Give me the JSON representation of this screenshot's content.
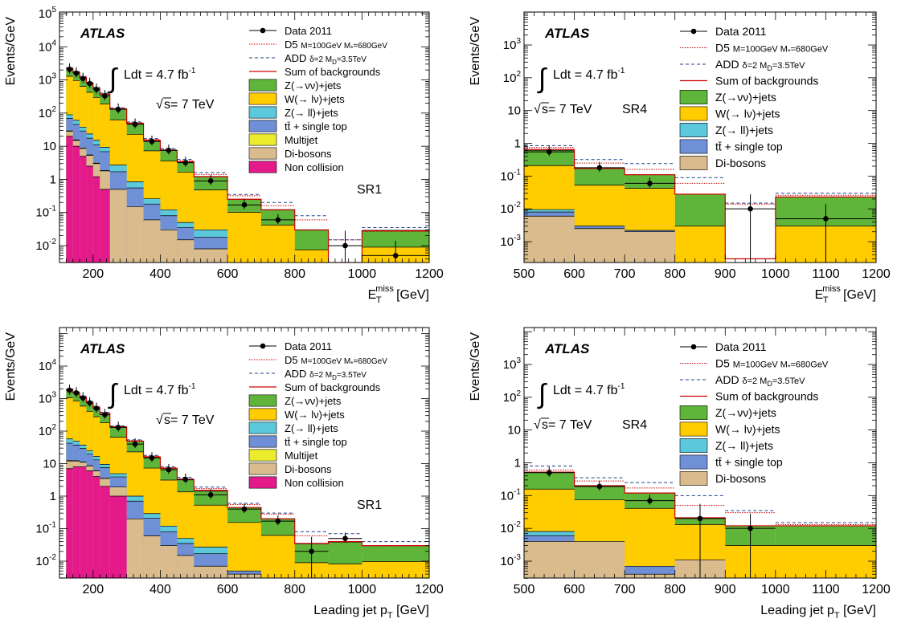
{
  "colors": {
    "znunu": "#5fb539",
    "wlnu": "#ffcc00",
    "zll": "#5bc8dc",
    "top": "#6f8fd6",
    "multijet": "#ecec2c",
    "diboson": "#d9bb8e",
    "noncoll": "#e41a8a",
    "sum": "#cc0000",
    "d5": "#cc0000",
    "add": "#1f3c88",
    "data": "#000000"
  },
  "common": {
    "experiment": "ATLAS",
    "y_label": "Events/GeV",
    "lumi_text": "Ldt = 4.7 fb",
    "lumi_sup": "-1",
    "energy_text": "s= 7 TeV",
    "legend": {
      "data": "Data 2011",
      "d5_a": "D5 ",
      "d5_b": "M=100GeV M",
      "d5_c": "*",
      "d5_d": "=680GeV",
      "add_a": "ADD ",
      "add_b": "δ=2 M",
      "add_c": "D",
      "add_d": "=3.5TeV",
      "sum": "Sum of backgrounds",
      "znunu": "Z(→νν)+jets",
      "wlnu": "W(→ lν)+jets",
      "zll": "Z(→ ll)+jets",
      "top": "tt̄ + single top",
      "multijet": "Multijet",
      "diboson": "Di-bosons",
      "noncoll": "Non collision"
    },
    "xlabel_met_main": "E",
    "xlabel_met_sup": "miss",
    "xlabel_met_sub": "T",
    "xlabel_met_unit": " [GeV]",
    "xlabel_pt_main": "Leading jet p",
    "xlabel_pt_sub": "T",
    "xlabel_pt_unit": " [GeV]"
  },
  "chart_data": [
    {
      "type": "area",
      "id": "a",
      "xaxis": "met",
      "region": "SR1",
      "xlim": [
        100,
        1200
      ],
      "ylim": [
        0.002,
        100000
      ],
      "log_y": true,
      "y_ticks": [
        "10-2",
        "10-1",
        "1",
        "10",
        "102",
        "103",
        "104",
        "105"
      ],
      "x_ticks": [
        "200",
        "400",
        "600",
        "800",
        "1000",
        "1200"
      ],
      "bin_edges": [
        120,
        140,
        160,
        180,
        200,
        220,
        250,
        300,
        350,
        400,
        450,
        500,
        600,
        700,
        800,
        900,
        1000,
        1200
      ],
      "stack": {
        "noncoll": [
          20,
          10,
          5,
          2.5,
          1.2,
          0.5,
          0,
          0,
          0,
          0,
          0,
          0,
          0,
          0,
          0,
          0,
          0
        ],
        "diboson": [
          8,
          5,
          3.5,
          2.8,
          1.8,
          1.3,
          0.5,
          0.15,
          0.06,
          0.03,
          0.015,
          0.008,
          0.002,
          0.002,
          0.0015,
          0,
          0.002
        ],
        "multijet": [
          1,
          0.6,
          0.3,
          0.15,
          0.08,
          0.04,
          0,
          0,
          0,
          0,
          0,
          0,
          0,
          0,
          0,
          0,
          0
        ],
        "top": [
          40,
          30,
          20,
          12,
          8,
          5,
          1.2,
          0.4,
          0.12,
          0.05,
          0.02,
          0.01,
          0,
          0,
          0,
          0,
          0
        ],
        "zll": [
          20,
          15,
          9,
          6,
          4,
          2.5,
          1,
          0.3,
          0.08,
          0.04,
          0.015,
          0.012,
          0,
          0,
          0,
          0,
          0
        ],
        "wlnu": [
          1200,
          900,
          600,
          400,
          280,
          180,
          60,
          22,
          7,
          3.5,
          1.6,
          0.45,
          0.1,
          0.04,
          0.006,
          0,
          0.007
        ],
        "znunu": [
          900,
          700,
          550,
          380,
          260,
          180,
          70,
          26,
          8,
          4,
          1.7,
          0.75,
          0.15,
          0.08,
          0.022,
          0,
          0.02
        ]
      },
      "sum": [
        2200,
        1700,
        1200,
        800,
        560,
        370,
        133,
        49,
        15,
        7.5,
        3.4,
        1.2,
        0.25,
        0.12,
        0.03,
        0.001,
        0.028
      ],
      "d5": [
        2300,
        1750,
        1250,
        830,
        580,
        390,
        140,
        52,
        16,
        8,
        3.7,
        1.4,
        0.32,
        0.16,
        0.06,
        0.015,
        0.027
      ],
      "add": [
        2350,
        1800,
        1280,
        850,
        600,
        400,
        145,
        54,
        17,
        8.5,
        4,
        1.6,
        0.35,
        0.2,
        0.08,
        0.015,
        0.035
      ],
      "data": {
        "x": [
          130,
          150,
          170,
          190,
          210,
          235,
          275,
          325,
          375,
          425,
          475,
          550,
          650,
          750,
          850,
          950,
          1100
        ],
        "y": [
          2100,
          1600,
          1100,
          780,
          520,
          330,
          130,
          46,
          14,
          7.5,
          3.2,
          0.9,
          0.17,
          0.06,
          null,
          0.01,
          0.005
        ]
      }
    },
    {
      "type": "area",
      "id": "b",
      "xaxis": "met",
      "region": "SR4",
      "xlim": [
        500,
        1200
      ],
      "ylim": [
        0.0003,
        10000
      ],
      "log_y": true,
      "y_ticks": [
        "10-3",
        "10-2",
        "10-1",
        "1",
        "10",
        "102",
        "103"
      ],
      "x_ticks": [
        "500",
        "600",
        "700",
        "800",
        "900",
        "1000",
        "1100",
        "1200"
      ],
      "bin_edges": [
        500,
        600,
        700,
        800,
        900,
        1000,
        1200
      ],
      "stack": {
        "noncoll": [
          0,
          0,
          0,
          0,
          0,
          0
        ],
        "diboson": [
          0.006,
          0.0025,
          0.002,
          0,
          0,
          0
        ],
        "multijet": [
          0,
          0,
          0,
          0,
          0,
          0
        ],
        "top": [
          0.002,
          0.0005,
          0.0002,
          0,
          0,
          0
        ],
        "zll": [
          0.0015,
          0,
          0,
          0,
          0,
          0
        ],
        "wlnu": [
          0.2,
          0.05,
          0.04,
          0.003,
          0,
          0.003
        ],
        "znunu": [
          0.4,
          0.12,
          0.07,
          0.025,
          0,
          0.02
        ]
      },
      "sum": [
        0.65,
        0.17,
        0.11,
        0.028,
        0.0003,
        0.023
      ],
      "d5": [
        0.75,
        0.25,
        0.16,
        0.06,
        0.014,
        0.026
      ],
      "add": [
        0.85,
        0.32,
        0.24,
        0.09,
        0.015,
        0.03
      ],
      "data": {
        "x": [
          550,
          650,
          750,
          850,
          950,
          1100
        ],
        "y": [
          0.55,
          0.18,
          0.06,
          null,
          0.01,
          0.005
        ]
      }
    },
    {
      "type": "area",
      "id": "c",
      "xaxis": "pt",
      "region": "SR1",
      "xlim": [
        100,
        1200
      ],
      "ylim": [
        0.002,
        100000
      ],
      "log_y": true,
      "y_ticks": [
        "10-2",
        "10-1",
        "1",
        "10",
        "102",
        "103",
        "104"
      ],
      "x_ticks": [
        "200",
        "400",
        "600",
        "800",
        "1000",
        "1200"
      ],
      "bin_edges": [
        120,
        140,
        160,
        180,
        200,
        220,
        250,
        300,
        350,
        400,
        450,
        500,
        600,
        700,
        800,
        900,
        1000,
        1200
      ],
      "stack": {
        "noncoll": [
          7,
          8,
          8,
          6,
          4,
          2,
          1,
          0,
          0,
          0,
          0,
          0,
          0,
          0,
          0,
          0,
          0
        ],
        "diboson": [
          5,
          4,
          3,
          2.5,
          2,
          1.5,
          0.9,
          0.2,
          0.06,
          0.03,
          0.015,
          0.007,
          0.004,
          0.002,
          0.002,
          0.0012,
          0.0018
        ],
        "multijet": [
          0.5,
          0.3,
          0.2,
          0.1,
          0.05,
          0.02,
          0,
          0,
          0,
          0,
          0,
          0,
          0,
          0,
          0,
          0,
          0
        ],
        "top": [
          30,
          25,
          18,
          11,
          7,
          4,
          2,
          0.5,
          0.15,
          0.05,
          0.02,
          0.01,
          0.001,
          0,
          0,
          0,
          0
        ],
        "zll": [
          15,
          12,
          8,
          5,
          3.5,
          2,
          1,
          0.3,
          0.08,
          0.04,
          0.015,
          0.01,
          0,
          0,
          0,
          0,
          0
        ],
        "wlnu": [
          1000,
          800,
          550,
          380,
          260,
          170,
          60,
          22,
          7,
          3,
          1.3,
          0.5,
          0.15,
          0.06,
          0.007,
          0.007,
          0.008
        ],
        "znunu": [
          800,
          650,
          500,
          350,
          250,
          170,
          70,
          26,
          9,
          4,
          1.8,
          0.9,
          0.3,
          0.14,
          0.025,
          0.03,
          0.02
        ]
      },
      "sum": [
        1900,
        1500,
        1100,
        760,
        530,
        350,
        135,
        49,
        16,
        7.2,
        3.2,
        1.5,
        0.45,
        0.2,
        0.035,
        0.04,
        0.03
      ],
      "d5": [
        1950,
        1550,
        1150,
        790,
        560,
        370,
        140,
        52,
        17,
        7.6,
        3.4,
        1.7,
        0.55,
        0.28,
        0.06,
        0.05,
        0.03
      ],
      "add": [
        2000,
        1600,
        1200,
        820,
        580,
        380,
        145,
        54,
        18,
        8,
        3.8,
        1.9,
        0.6,
        0.3,
        0.08,
        0.07,
        0.04
      ],
      "data": {
        "x": [
          130,
          150,
          170,
          190,
          210,
          235,
          275,
          325,
          375,
          425,
          475,
          550,
          650,
          750,
          850,
          950,
          1100
        ],
        "y": [
          1800,
          1500,
          1050,
          740,
          500,
          320,
          130,
          40,
          15,
          6.5,
          3.3,
          1.1,
          0.4,
          0.17,
          0.02,
          0.05,
          null
        ]
      }
    },
    {
      "type": "area",
      "id": "d",
      "xaxis": "pt",
      "region": "SR4",
      "xlim": [
        500,
        1200
      ],
      "ylim": [
        0.0003,
        10000
      ],
      "log_y": true,
      "y_ticks": [
        "10-3",
        "10-2",
        "10-1",
        "1",
        "10",
        "102",
        "103"
      ],
      "x_ticks": [
        "500",
        "600",
        "700",
        "800",
        "900",
        "1000",
        "1100",
        "1200"
      ],
      "bin_edges": [
        500,
        600,
        700,
        800,
        900,
        1000,
        1200
      ],
      "stack": {
        "noncoll": [
          0,
          0,
          0,
          0,
          0,
          0
        ],
        "diboson": [
          0.004,
          0.004,
          0.0004,
          0.0011,
          0,
          0
        ],
        "multijet": [
          0,
          0,
          0,
          0,
          0,
          0
        ],
        "top": [
          0.002,
          0,
          0.0003,
          0,
          0,
          0
        ],
        "zll": [
          0.002,
          0,
          0,
          0,
          0,
          0
        ],
        "wlnu": [
          0.15,
          0.07,
          0.04,
          0.012,
          0.003,
          0.003
        ],
        "znunu": [
          0.35,
          0.13,
          0.08,
          0.008,
          0.009,
          0.009
        ]
      },
      "sum": [
        0.52,
        0.2,
        0.12,
        0.021,
        0.012,
        0.012
      ],
      "d5": [
        0.6,
        0.28,
        0.17,
        0.05,
        0.03,
        0.013
      ],
      "add": [
        0.8,
        0.35,
        0.25,
        0.1,
        0.035,
        0.015
      ],
      "data": {
        "x": [
          550,
          650,
          750,
          850,
          950,
          1100
        ],
        "y": [
          0.5,
          0.19,
          0.07,
          0.02,
          0.01,
          null
        ]
      }
    }
  ]
}
